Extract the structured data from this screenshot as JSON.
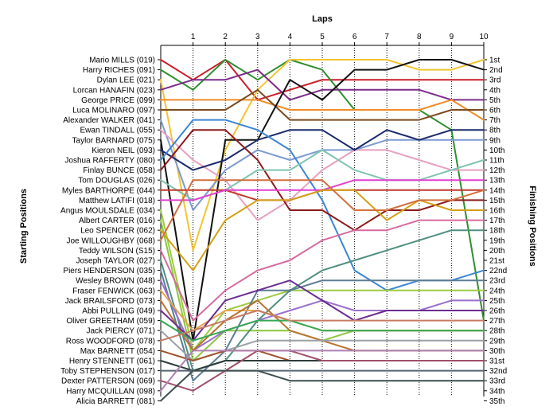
{
  "chart_data": {
    "type": "line",
    "title": "Laps",
    "ylabel_left": "Starting Positions",
    "ylabel_right": "Finishing Positions",
    "x": [
      0,
      1,
      2,
      3,
      4,
      5,
      6,
      7,
      8,
      9,
      10
    ],
    "xticks": [
      "1",
      "2",
      "3",
      "4",
      "5",
      "6",
      "7",
      "8",
      "9",
      "10"
    ],
    "xlim": [
      0,
      10
    ],
    "ylim": [
      1,
      36
    ],
    "finish_labels": [
      "1st",
      "2nd",
      "3rd",
      "4th",
      "5th",
      "6th",
      "7th",
      "8th",
      "9th",
      "10th",
      "11th",
      "12th",
      "13th",
      "14th",
      "15th",
      "16th",
      "17th",
      "18th",
      "19th",
      "20th",
      "21st",
      "22nd",
      "23rd",
      "24th",
      "25th",
      "26th",
      "27th",
      "28th",
      "29th",
      "30th",
      "31st",
      "32nd",
      "33rd",
      "34th",
      "35th"
    ],
    "series": [
      {
        "name": "Mario MILLS (019)",
        "color": "#cc1f2a",
        "values": [
          1,
          3,
          1,
          5,
          4,
          3,
          3,
          3,
          3,
          3,
          3
        ]
      },
      {
        "name": "Harry RICHES (091)",
        "color": "#2f8f2f",
        "values": [
          2,
          4,
          1,
          3,
          1,
          2,
          6,
          6,
          6,
          8,
          27
        ]
      },
      {
        "name": "Dylan LEE (021)",
        "color": "#f4c430",
        "values": [
          3,
          20,
          10,
          4,
          1,
          1,
          1,
          1,
          2,
          2,
          1
        ]
      },
      {
        "name": "Lorcan HANAFIN (023)",
        "color": "#7d2a8a",
        "values": [
          4,
          3,
          3,
          2,
          5,
          4,
          4,
          4,
          4,
          5,
          5
        ]
      },
      {
        "name": "George PRICE (099)",
        "color": "#f08d27",
        "values": [
          5,
          5,
          5,
          5,
          6,
          6,
          6,
          6,
          6,
          5,
          7
        ]
      },
      {
        "name": "Luca MOLINARO (097)",
        "color": "#7b4a1e",
        "values": [
          6,
          6,
          6,
          4,
          7,
          7,
          7,
          7,
          7,
          6,
          6
        ]
      },
      {
        "name": "Alexander WALKER (041)",
        "color": "#7c9ad3",
        "values": [
          7,
          16,
          12,
          10,
          11,
          10,
          10,
          9,
          9,
          9,
          9
        ]
      },
      {
        "name": "Ewan TINDALL (055)",
        "color": "#e8a0c0",
        "values": [
          8,
          11,
          13,
          17,
          15,
          12,
          10,
          10,
          11,
          12,
          12
        ]
      },
      {
        "name": "Taylor BARNARD (075)",
        "color": "#121212",
        "values": [
          9,
          29,
          9,
          9,
          3,
          5,
          2,
          2,
          1,
          1,
          2
        ]
      },
      {
        "name": "Kieron NEIL (093)",
        "color": "#1a2a6c",
        "values": [
          10,
          12,
          11,
          9,
          8,
          8,
          10,
          8,
          9,
          8,
          8
        ]
      },
      {
        "name": "Joshua RAFFERTY (080)",
        "color": "#3a86d4",
        "values": [
          11,
          7,
          7,
          8,
          10,
          15,
          22,
          24,
          23,
          23,
          22
        ]
      },
      {
        "name": "Finlay BUNCE (058)",
        "color": "#8c1a1a",
        "values": [
          12,
          8,
          8,
          11,
          16,
          16,
          18,
          16,
          16,
          15,
          15
        ]
      },
      {
        "name": "Tom DOUGLAS (026)",
        "color": "#7fc4b0",
        "values": [
          13,
          15,
          14,
          12,
          12,
          10,
          12,
          13,
          13,
          12,
          11
        ]
      },
      {
        "name": "Myles BARTHORPE (044)",
        "color": "#c0392b",
        "values": [
          14,
          14,
          14,
          15,
          15,
          14,
          14,
          14,
          14,
          14,
          14
        ]
      },
      {
        "name": "Matthew LATIFI (018)",
        "color": "#e040d0",
        "values": [
          15,
          15,
          14,
          14,
          14,
          14,
          13,
          13,
          13,
          13,
          13
        ]
      },
      {
        "name": "Angus MOULSDALE (034)",
        "color": "#9ccc40",
        "values": [
          16,
          30,
          26,
          25,
          24,
          24,
          24,
          24,
          24,
          24,
          24
        ]
      },
      {
        "name": "Albert CARTER (016)",
        "color": "#8cc63f",
        "values": [
          17,
          31,
          28,
          28,
          28,
          29,
          28,
          28,
          28,
          28,
          28
        ]
      },
      {
        "name": "Leo SPENCER (062)",
        "color": "#d4a017",
        "values": [
          18,
          22,
          17,
          15,
          15,
          14,
          14,
          17,
          15,
          16,
          16
        ]
      },
      {
        "name": "Joe WILLOUGHBY (068)",
        "color": "#d36e3c",
        "values": [
          19,
          13,
          13,
          13,
          13,
          13,
          16,
          16,
          15,
          15,
          14
        ]
      },
      {
        "name": "Teddy WILSON (S15)",
        "color": "#d66aa0",
        "values": [
          20,
          27,
          24,
          22,
          21,
          19,
          18,
          18,
          17,
          17,
          17
        ]
      },
      {
        "name": "Joseph TAYLOR (027)",
        "color": "#4f8f80",
        "values": [
          21,
          32,
          31,
          27,
          24,
          22,
          21,
          20,
          19,
          18,
          18
        ]
      },
      {
        "name": "Piers HENDERSON (035)",
        "color": "#5c7d93",
        "values": [
          22,
          33,
          30,
          24,
          24,
          23,
          23,
          23,
          23,
          23,
          23
        ]
      },
      {
        "name": "Wesley BROWN (048)",
        "color": "#9b6fce",
        "values": [
          23,
          30,
          28,
          27,
          26,
          25,
          26,
          26,
          26,
          25,
          25
        ]
      },
      {
        "name": "Fraser FENWICK (063)",
        "color": "#e6a64c",
        "values": [
          24,
          28,
          26,
          26,
          27,
          28,
          28,
          28,
          28,
          28,
          28
        ]
      },
      {
        "name": "Jack BRAILSFORD (073)",
        "color": "#b87333",
        "values": [
          25,
          30,
          27,
          25,
          28,
          29,
          30,
          30,
          30,
          30,
          30
        ]
      },
      {
        "name": "Abbi PULLING (049)",
        "color": "#6a2c91",
        "values": [
          26,
          29,
          25,
          24,
          23,
          25,
          27,
          26,
          26,
          26,
          26
        ]
      },
      {
        "name": "Oliver GREETHAM (059)",
        "color": "#34a853",
        "values": [
          27,
          29,
          28,
          27,
          27,
          28,
          28,
          28,
          28,
          28,
          28
        ]
      },
      {
        "name": "Jack PIERCY (071)",
        "color": "#9aa0a6",
        "values": [
          28,
          31,
          30,
          29,
          29,
          29,
          29,
          29,
          29,
          29,
          29
        ]
      },
      {
        "name": "Ross WOODFORD (078)",
        "color": "#c77b63",
        "values": [
          29,
          28,
          27,
          26,
          27,
          27,
          27,
          27,
          27,
          27,
          27
        ]
      },
      {
        "name": "Max BARNETT (054)",
        "color": "#a0522d",
        "values": [
          30,
          31,
          30,
          30,
          31,
          31,
          31,
          31,
          31,
          31,
          31
        ]
      },
      {
        "name": "Henry STENNETT (061)",
        "color": "#2e3b3a",
        "values": [
          31,
          32,
          31,
          31,
          31,
          31,
          31,
          31,
          31,
          31,
          31
        ]
      },
      {
        "name": "Toby STEPHENSON (017)",
        "color": "#566573",
        "values": [
          32,
          32,
          32,
          32,
          32,
          32,
          32,
          32,
          32,
          32,
          32
        ]
      },
      {
        "name": "Dexter PATTERSON (069)",
        "color": "#a0506a",
        "values": [
          33,
          34,
          32,
          30,
          30,
          31,
          31,
          31,
          31,
          31,
          31
        ]
      },
      {
        "name": "Harry MCQUILLAN (098)",
        "color": "#b07fb0",
        "values": [
          34,
          30,
          30,
          30,
          30,
          30,
          30,
          30,
          30,
          30,
          30
        ]
      },
      {
        "name": "Alicia BARRETT (081)",
        "color": "#3d4f4f",
        "values": [
          35,
          32,
          32,
          32,
          33,
          33,
          33,
          33,
          33,
          33,
          33
        ]
      }
    ]
  }
}
